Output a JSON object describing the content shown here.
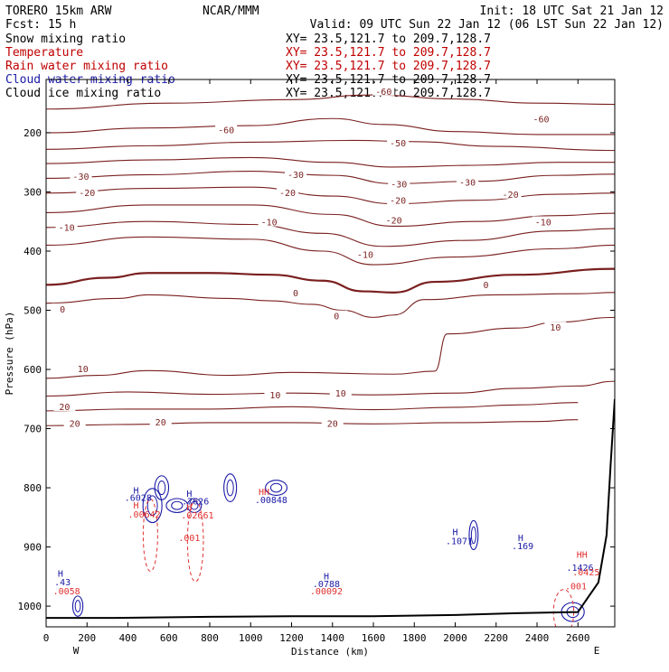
{
  "header": {
    "model": "TORERO  15km ARW",
    "center": "NCAR/MMM",
    "init": "Init: 18 UTC Sat 21 Jan 12",
    "fcst": "Fcst:   15 h",
    "valid": "Valid: 09 UTC Sun 22 Jan 12 (06 LST Sun 22 Jan 12)"
  },
  "fields": [
    {
      "name": "Snow mixing ratio",
      "xy": "XY=  23.5,121.7 to 209.7,128.7",
      "color": "#000000",
      "xy_color": "#000000"
    },
    {
      "name": "Temperature",
      "xy": "XY=  23.5,121.7 to 209.7,128.7",
      "color": "#c00000",
      "xy_color": "#c00000"
    },
    {
      "name": "Rain water mixing ratio",
      "xy": "XY=  23.5,121.7 to 209.7,128.7",
      "color": "#c00000",
      "xy_color": "#c00000"
    },
    {
      "name": "Cloud water mixing ratio",
      "xy": "XY=  23.5,121.7 to 209.7,128.7",
      "color": "#1a1aa6",
      "xy_color": "#000000"
    },
    {
      "name": "Cloud ice mixing ratio",
      "xy": "XY=  23.5,121.7 to 209.7,128.7",
      "color": "#000000",
      "xy_color": "#000000"
    }
  ],
  "chart_data": {
    "type": "line",
    "xlabel": "Distance (km)",
    "ylabel": "Pressure (hPa)",
    "xlim": [
      0,
      2780
    ],
    "ylim": [
      1035,
      110
    ],
    "x_ticks": [
      0,
      200,
      400,
      600,
      800,
      1000,
      1200,
      1400,
      1600,
      1800,
      2000,
      2200,
      2400,
      2600
    ],
    "y_ticks": [
      200,
      300,
      400,
      500,
      600,
      700,
      800,
      900,
      1000
    ],
    "left_end_label": "W",
    "right_end_label": "E",
    "colors": {
      "temperature": "#7a1f1f",
      "cloud_water": "#1a1aa6",
      "rain_water": "#e03030",
      "terrain": "#000000"
    },
    "temperature_isotherms": [
      {
        "level": -60,
        "points": [
          [
            0,
            200
          ],
          [
            500,
            192
          ],
          [
            1000,
            188
          ],
          [
            1400,
            176
          ],
          [
            1650,
            186
          ],
          [
            2000,
            198
          ],
          [
            2400,
            203
          ],
          [
            2780,
            203
          ]
        ],
        "labels": [
          [
            880,
            196,
            "-60"
          ],
          [
            2420,
            178,
            "-60"
          ]
        ]
      },
      {
        "level": -60,
        "points": [
          [
            0,
            160
          ],
          [
            600,
            150
          ],
          [
            1200,
            144
          ],
          [
            1600,
            136
          ],
          [
            2000,
            143
          ],
          [
            2400,
            150
          ],
          [
            2780,
            152
          ]
        ],
        "labels": [
          [
            1650,
            131,
            "-60"
          ]
        ]
      },
      {
        "level": -50,
        "points": [
          [
            0,
            228
          ],
          [
            500,
            222
          ],
          [
            1000,
            216
          ],
          [
            1500,
            213
          ],
          [
            1800,
            215
          ],
          [
            2200,
            223
          ],
          [
            2780,
            230
          ]
        ],
        "labels": [
          [
            1720,
            218,
            "-50"
          ]
        ]
      },
      {
        "level": -40,
        "points": [
          [
            0,
            252
          ],
          [
            500,
            246
          ],
          [
            1000,
            242
          ],
          [
            1400,
            250
          ],
          [
            1700,
            258
          ],
          [
            2100,
            255
          ],
          [
            2500,
            250
          ],
          [
            2780,
            250
          ]
        ],
        "labels": []
      },
      {
        "level": -30,
        "points": [
          [
            0,
            277
          ],
          [
            500,
            271
          ],
          [
            1000,
            265
          ],
          [
            1400,
            272
          ],
          [
            1700,
            286
          ],
          [
            2100,
            282
          ],
          [
            2500,
            272
          ],
          [
            2780,
            270
          ]
        ],
        "labels": [
          [
            170,
            275,
            "-30"
          ],
          [
            1220,
            272,
            "-30"
          ],
          [
            1725,
            288,
            "-30"
          ],
          [
            2060,
            285,
            "-30"
          ]
        ]
      },
      {
        "level": -20,
        "points": [
          [
            0,
            302
          ],
          [
            500,
            294
          ],
          [
            1000,
            292
          ],
          [
            1400,
            307
          ],
          [
            1700,
            320
          ],
          [
            2100,
            314
          ],
          [
            2500,
            304
          ],
          [
            2780,
            302
          ]
        ],
        "labels": [
          [
            200,
            302,
            "-20"
          ],
          [
            1180,
            302,
            "-20"
          ],
          [
            1720,
            315,
            "-20"
          ],
          [
            2270,
            305,
            "-20"
          ]
        ]
      },
      {
        "level": -20,
        "points": [
          [
            0,
            335
          ],
          [
            500,
            322
          ],
          [
            1000,
            322
          ],
          [
            1400,
            338
          ],
          [
            1700,
            358
          ],
          [
            2100,
            350
          ],
          [
            2500,
            340
          ],
          [
            2780,
            336
          ]
        ],
        "labels": [
          [
            1700,
            349,
            "-20"
          ]
        ]
      },
      {
        "level": -10,
        "points": [
          [
            0,
            360
          ],
          [
            500,
            350
          ],
          [
            1000,
            355
          ],
          [
            1350,
            370
          ],
          [
            1650,
            392
          ],
          [
            2050,
            382
          ],
          [
            2500,
            366
          ],
          [
            2780,
            362
          ]
        ],
        "labels": [
          [
            100,
            361,
            "-10"
          ],
          [
            1090,
            352,
            "-10"
          ],
          [
            2430,
            352,
            "-10"
          ]
        ]
      },
      {
        "level": -10,
        "points": [
          [
            0,
            390
          ],
          [
            500,
            376
          ],
          [
            1000,
            380
          ],
          [
            1350,
            400
          ],
          [
            1600,
            423
          ],
          [
            2000,
            410
          ],
          [
            2500,
            396
          ],
          [
            2780,
            390
          ]
        ],
        "labels": [
          [
            1560,
            407,
            "-10"
          ]
        ]
      },
      {
        "level": 0,
        "points": [
          [
            0,
            457
          ],
          [
            300,
            445
          ],
          [
            500,
            437
          ],
          [
            800,
            437
          ],
          [
            1100,
            440
          ],
          [
            1350,
            450
          ],
          [
            1550,
            468
          ],
          [
            1700,
            470
          ],
          [
            1900,
            452
          ],
          [
            2300,
            440
          ],
          [
            2780,
            430
          ]
        ],
        "labels": [
          [
            1220,
            472,
            "0"
          ],
          [
            2150,
            458,
            "0"
          ]
        ]
      },
      {
        "level": 0,
        "points": [
          [
            0,
            488
          ],
          [
            350,
            480
          ],
          [
            500,
            474
          ],
          [
            900,
            480
          ],
          [
            1100,
            484
          ],
          [
            1300,
            490
          ],
          [
            1450,
            500
          ],
          [
            1600,
            512
          ],
          [
            1700,
            508
          ],
          [
            1850,
            482
          ],
          [
            2200,
            474
          ],
          [
            2600,
            472
          ],
          [
            2780,
            470
          ]
        ],
        "labels": [
          [
            80,
            499,
            "0"
          ],
          [
            1420,
            511,
            "0"
          ]
        ]
      },
      {
        "level": 10,
        "points": [
          [
            0,
            615
          ],
          [
            250,
            610
          ],
          [
            500,
            602
          ],
          [
            900,
            610
          ],
          [
            1200,
            605
          ],
          [
            1700,
            608
          ],
          [
            1900,
            603
          ],
          [
            1960,
            540
          ],
          [
            2300,
            530
          ],
          [
            2500,
            520
          ],
          [
            2780,
            512
          ]
        ],
        "labels": [
          [
            180,
            600,
            "10"
          ],
          [
            2490,
            530,
            "10"
          ]
        ]
      },
      {
        "level": 10,
        "points": [
          [
            0,
            645
          ],
          [
            400,
            638
          ],
          [
            800,
            642
          ],
          [
            1200,
            640
          ],
          [
            1600,
            643
          ],
          [
            2000,
            640
          ],
          [
            2300,
            632
          ],
          [
            2600,
            628
          ],
          [
            2780,
            620
          ]
        ],
        "labels": [
          [
            1120,
            644,
            "10"
          ],
          [
            1440,
            641,
            "10"
          ]
        ]
      },
      {
        "level": 20,
        "points": [
          [
            0,
            670
          ],
          [
            400,
            667
          ],
          [
            800,
            667
          ],
          [
            1200,
            663
          ],
          [
            1600,
            668
          ],
          [
            2000,
            664
          ],
          [
            2300,
            660
          ],
          [
            2600,
            656
          ]
        ],
        "labels": [
          [
            90,
            664,
            "20"
          ]
        ]
      },
      {
        "level": 20,
        "points": [
          [
            0,
            695
          ],
          [
            400,
            693
          ],
          [
            800,
            690
          ],
          [
            1200,
            690
          ],
          [
            1600,
            692
          ],
          [
            2000,
            690
          ],
          [
            2400,
            688
          ],
          [
            2600,
            685
          ]
        ],
        "labels": [
          [
            140,
            692,
            "20"
          ],
          [
            560,
            690,
            "20"
          ],
          [
            1400,
            692,
            "20"
          ]
        ]
      }
    ],
    "cloud_water_contours": [
      {
        "center": [
          565,
          800
        ],
        "rx": 22,
        "ry": 38
      },
      {
        "center": [
          520,
          830
        ],
        "rx": 30,
        "ry": 54
      },
      {
        "center": [
          725,
          830
        ],
        "rx": 22,
        "ry": 22
      },
      {
        "center": [
          640,
          830
        ],
        "rx": 34,
        "ry": 22
      },
      {
        "center": [
          1125,
          800
        ],
        "rx": 34,
        "ry": 24
      },
      {
        "center": [
          900,
          800
        ],
        "rx": 20,
        "ry": 44
      },
      {
        "center": [
          2090,
          880
        ],
        "rx": 14,
        "ry": 46
      },
      {
        "center": [
          155,
          1000
        ],
        "rx": 16,
        "ry": 32
      },
      {
        "center": [
          2575,
          1010
        ],
        "rx": 36,
        "ry": 30
      }
    ],
    "rain_water_contours": [
      {
        "center": [
          510,
          880
        ],
        "rx": 20,
        "ry": 80
      },
      {
        "center": [
          730,
          890
        ],
        "rx": 22,
        "ry": 90
      },
      {
        "center": [
          2530,
          1010
        ],
        "rx": 28,
        "ry": 50
      }
    ],
    "terrain": [
      [
        0,
        1020
      ],
      [
        300,
        1020
      ],
      [
        800,
        1018
      ],
      [
        1200,
        1017
      ],
      [
        1600,
        1017
      ],
      [
        2000,
        1015
      ],
      [
        2300,
        1012
      ],
      [
        2600,
        1010
      ],
      [
        2650,
        985
      ],
      [
        2700,
        960
      ],
      [
        2740,
        880
      ],
      [
        2760,
        760
      ],
      [
        2780,
        650
      ]
    ],
    "extrema_labels": [
      {
        "x": 70,
        "p": 950,
        "text": "H",
        "color": "#1a1aa6"
      },
      {
        "x": 80,
        "p": 965,
        "text": ".43",
        "color": "#1a1aa6"
      },
      {
        "x": 100,
        "p": 980,
        "text": ".0058",
        "color": "#e03030"
      },
      {
        "x": 440,
        "p": 810,
        "text": "H",
        "color": "#1a1aa6"
      },
      {
        "x": 450,
        "p": 822,
        "text": ".6028",
        "color": "#1a1aa6"
      },
      {
        "x": 440,
        "p": 835,
        "text": "H",
        "color": "#e03030"
      },
      {
        "x": 480,
        "p": 850,
        "text": ".00642",
        "color": "#e03030"
      },
      {
        "x": 700,
        "p": 815,
        "text": "H",
        "color": "#1a1aa6"
      },
      {
        "x": 730,
        "p": 828,
        "text": ".7626",
        "color": "#1a1aa6"
      },
      {
        "x": 700,
        "p": 838,
        "text": "H",
        "color": "#e03030"
      },
      {
        "x": 740,
        "p": 852,
        "text": ".02661",
        "color": "#e03030"
      },
      {
        "x": 1065,
        "p": 812,
        "text": "HH",
        "color": "#e03030"
      },
      {
        "x": 1100,
        "p": 826,
        "text": ".00848",
        "color": "#1a1aa6"
      },
      {
        "x": 700,
        "p": 890,
        "text": ".001",
        "color": "#e03030"
      },
      {
        "x": 1370,
        "p": 955,
        "text": "H",
        "color": "#1a1aa6"
      },
      {
        "x": 1370,
        "p": 968,
        "text": ".0788",
        "color": "#1a1aa6"
      },
      {
        "x": 1370,
        "p": 980,
        "text": ".00092",
        "color": "#e03030"
      },
      {
        "x": 2000,
        "p": 880,
        "text": "H",
        "color": "#1a1aa6"
      },
      {
        "x": 2020,
        "p": 895,
        "text": ".1071",
        "color": "#1a1aa6"
      },
      {
        "x": 2320,
        "p": 890,
        "text": "H",
        "color": "#1a1aa6"
      },
      {
        "x": 2330,
        "p": 904,
        "text": ".169",
        "color": "#1a1aa6"
      },
      {
        "x": 2620,
        "p": 918,
        "text": "HH",
        "color": "#e03030"
      },
      {
        "x": 2610,
        "p": 940,
        "text": ".1426",
        "color": "#1a1aa6"
      },
      {
        "x": 2640,
        "p": 948,
        "text": ".0425",
        "color": "#e03030"
      },
      {
        "x": 2590,
        "p": 972,
        "text": ".001",
        "color": "#e03030"
      }
    ]
  }
}
